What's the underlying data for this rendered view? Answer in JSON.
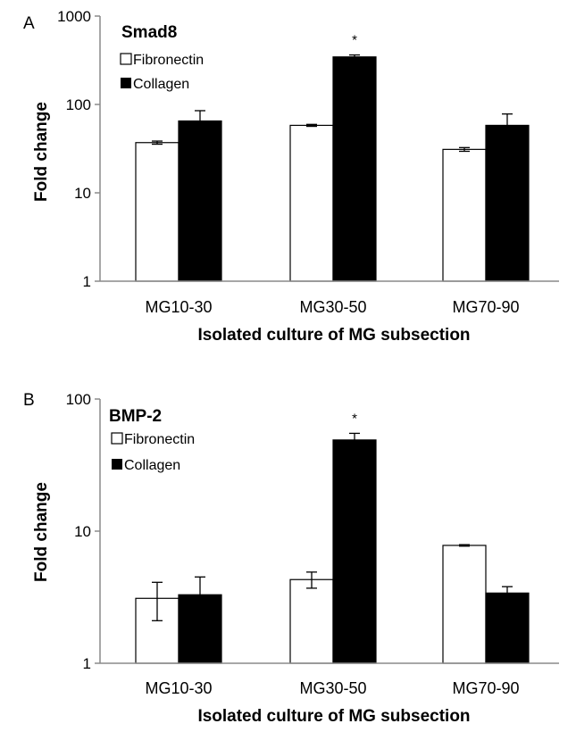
{
  "chart_data": [
    {
      "panel_label": "A",
      "type": "bar",
      "title": "Smad8",
      "xlabel": "Isolated culture of MG subsection",
      "ylabel": "Fold change",
      "yscale": "log",
      "ylim": [
        1,
        1000
      ],
      "yticks": [
        "1",
        "10",
        "100",
        "1000"
      ],
      "categories": [
        "MG10-30",
        "MG30-50",
        "MG70-90"
      ],
      "legend_position": "top-left",
      "series": [
        {
          "name": "Fibronectin",
          "color": "#ffffff",
          "values": [
            37,
            58,
            31
          ],
          "errors": [
            1.5,
            1.5,
            1.5
          ]
        },
        {
          "name": "Collagen",
          "color": "#000000",
          "values": [
            65,
            345,
            58
          ],
          "errors": [
            20,
            18,
            20
          ]
        }
      ],
      "annotations": [
        {
          "text": "*",
          "category": "MG30-50"
        }
      ]
    },
    {
      "panel_label": "B",
      "type": "bar",
      "title": "BMP-2",
      "xlabel": "Isolated culture of MG subsection",
      "ylabel": "Fold change",
      "yscale": "log",
      "ylim": [
        1,
        100
      ],
      "yticks": [
        "1",
        "10",
        "100"
      ],
      "categories": [
        "MG10-30",
        "MG30-50",
        "MG70-90"
      ],
      "legend_position": "top-left",
      "series": [
        {
          "name": "Fibronectin",
          "color": "#ffffff",
          "values": [
            3.1,
            4.3,
            7.8
          ],
          "errors": [
            1.0,
            0.6,
            0.1
          ]
        },
        {
          "name": "Collagen",
          "color": "#000000",
          "values": [
            3.3,
            49,
            3.4
          ],
          "errors": [
            1.2,
            6,
            0.4
          ]
        }
      ],
      "annotations": [
        {
          "text": "*",
          "category": "MG30-50"
        }
      ]
    }
  ]
}
